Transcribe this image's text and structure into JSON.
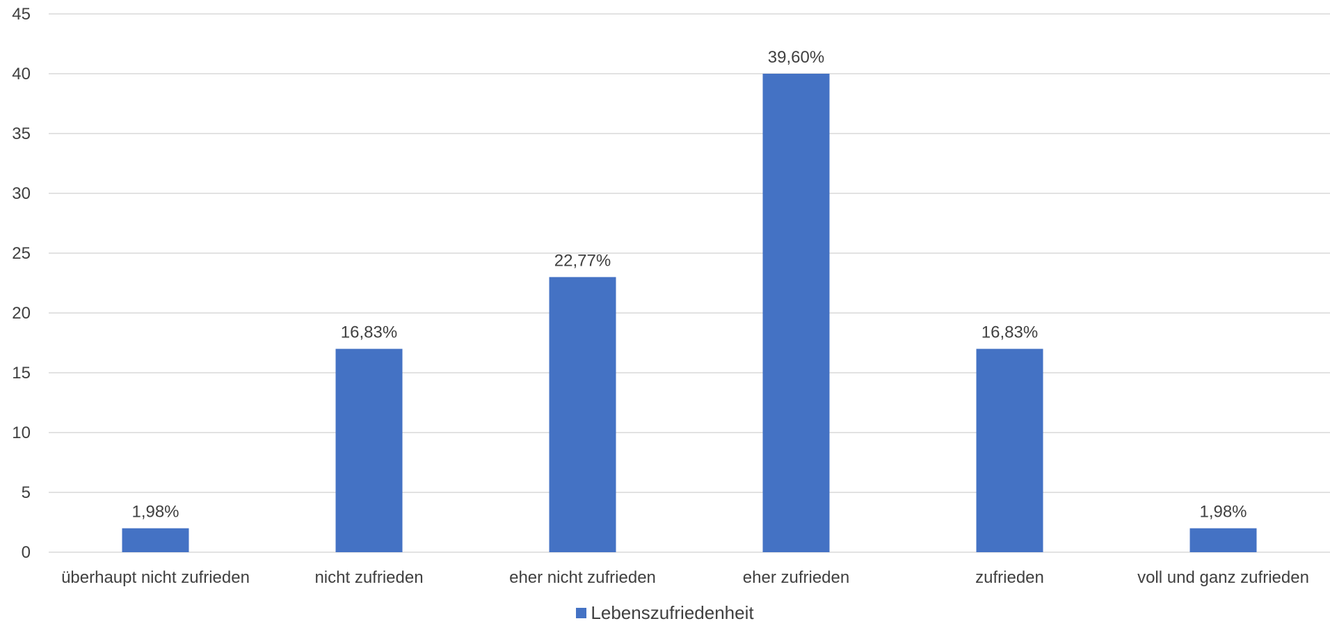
{
  "chart_data": {
    "type": "bar",
    "categories": [
      "überhaupt nicht zufrieden",
      "nicht zufrieden",
      "eher nicht zufrieden",
      "eher zufrieden",
      "zufrieden",
      "voll und ganz zufrieden"
    ],
    "series": [
      {
        "name": "Lebenszufriedenheit",
        "values": [
          2,
          17,
          23,
          40,
          17,
          2
        ],
        "data_labels": [
          "1,98%",
          "16,83%",
          "22,77%",
          "39,60%",
          "16,83%",
          "1,98%"
        ],
        "color": "#4472C4"
      }
    ],
    "ylim": [
      0,
      45
    ],
    "yticks": [
      0,
      5,
      10,
      15,
      20,
      25,
      30,
      35,
      40,
      45
    ],
    "grid": true,
    "legend": "bottom-center",
    "colors": {
      "bar": "#4472C4",
      "grid": "#D9D9D9",
      "text": "#404040"
    }
  }
}
